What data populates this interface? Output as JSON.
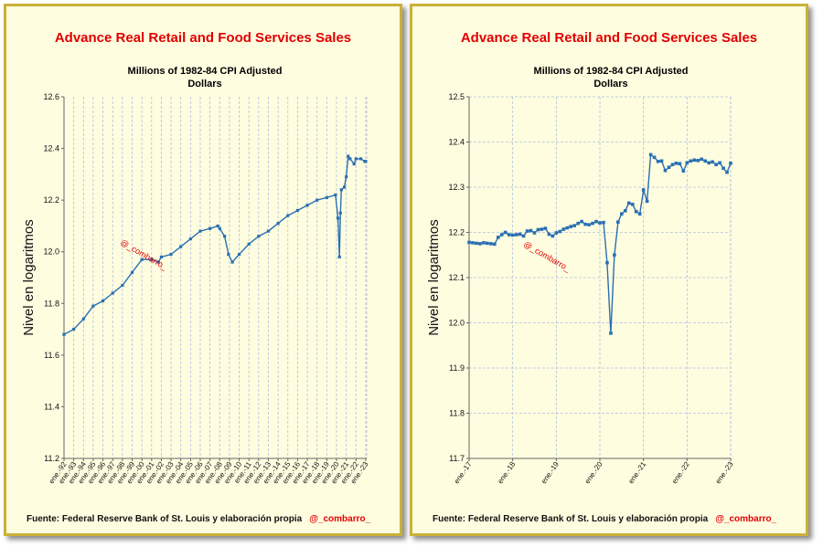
{
  "left_panel": {
    "title": "Advance Real Retail and Food Services Sales",
    "subtitle_line1": "Millions of 1982-84 CPI Adjusted",
    "subtitle_line2": "Dollars",
    "footer_source": "Fuente: Federal Reserve Bank of St. Louis y elaboración propia",
    "footer_handle": "@_combarro_",
    "watermark": "@_combarro_"
  },
  "right_panel": {
    "title": "Advance Real Retail and Food Services Sales",
    "subtitle_line1": "Millions of 1982-84 CPI Adjusted",
    "subtitle_line2": "Dollars",
    "footer_source": "Fuente: Federal Reserve Bank of St. Louis y elaboración propia",
    "footer_handle": "@_combarro_",
    "watermark": "@_combarro_"
  },
  "colors": {
    "series": "#2a6fb1",
    "title": "#e10000",
    "panel_bg": "#fffde0",
    "panel_border": "#c9b13a",
    "grid": "#aebfdd"
  },
  "chart_data": [
    {
      "type": "line",
      "title": "Advance Real Retail and Food Services Sales",
      "subtitle": "Millions of 1982-84 CPI Adjusted Dollars",
      "xlabel": "",
      "ylabel": "Nivel en logaritmos",
      "ylim": [
        11.2,
        12.6
      ],
      "yticks": [
        11.2,
        11.4,
        11.6,
        11.8,
        12.0,
        12.2,
        12.4,
        12.6
      ],
      "xlim": [
        1992.0,
        2023.1
      ],
      "grid": "vertical-dashed",
      "series": [
        {
          "x": [
            1992.0,
            1993.0,
            1994.0,
            1995.0,
            1996.0,
            1997.0,
            1998.0,
            1999.0,
            2000.0,
            2001.0,
            2001.7,
            2002.0,
            2003.0,
            2004.0,
            2005.0,
            2006.0,
            2007.0,
            2007.8,
            2008.0,
            2008.5,
            2008.9,
            2009.3,
            2010.0,
            2011.0,
            2012.0,
            2013.0,
            2014.0,
            2015.0,
            2016.0,
            2017.0,
            2018.0,
            2019.0,
            2019.9,
            2020.15,
            2020.3,
            2020.4,
            2020.5,
            2020.8,
            2021.0,
            2021.2,
            2021.4,
            2021.8,
            2022.0,
            2022.5,
            2022.9,
            2023.0
          ],
          "y": [
            11.68,
            11.7,
            11.74,
            11.79,
            11.81,
            11.84,
            11.87,
            11.92,
            11.97,
            11.97,
            11.96,
            11.98,
            11.99,
            12.02,
            12.05,
            12.08,
            12.09,
            12.1,
            12.09,
            12.06,
            11.99,
            11.96,
            11.99,
            12.03,
            12.06,
            12.08,
            12.11,
            12.14,
            12.16,
            12.18,
            12.2,
            12.21,
            12.22,
            12.13,
            11.98,
            12.15,
            12.24,
            12.25,
            12.29,
            12.37,
            12.36,
            12.34,
            12.36,
            12.36,
            12.35,
            12.35
          ]
        }
      ],
      "xtick_labels": [
        "ene.-92",
        "ene.-93",
        "ene.-94",
        "ene.-95",
        "ene.-96",
        "ene.-97",
        "ene.-98",
        "ene.-99",
        "ene.-00",
        "ene.-01",
        "ene.-02",
        "ene.-03",
        "ene.-04",
        "ene.-05",
        "ene.-06",
        "ene.-07",
        "ene.-08",
        "ene.-09",
        "ene.-10",
        "ene.-11",
        "ene.-12",
        "ene.-13",
        "ene.-14",
        "ene.-15",
        "ene.-16",
        "ene.-17",
        "ene.-18",
        "ene.-19",
        "ene.-20",
        "ene.-21",
        "ene.-22",
        "ene.-23"
      ]
    },
    {
      "type": "line",
      "title": "Advance Real Retail and Food Services Sales",
      "subtitle": "Millions of 1982-84 CPI Adjusted Dollars",
      "xlabel": "",
      "ylabel": "Nivel en logaritmos",
      "ylim": [
        11.7,
        12.5
      ],
      "yticks": [
        11.7,
        11.8,
        11.9,
        12.0,
        12.1,
        12.2,
        12.3,
        12.4,
        12.5
      ],
      "xlim": [
        2017.0,
        2023.0
      ],
      "grid": "both-dashed",
      "series": [
        {
          "x": [
            2017.0,
            2017.0833,
            2017.1667,
            2017.25,
            2017.3333,
            2017.4167,
            2017.5,
            2017.5833,
            2017.6667,
            2017.75,
            2017.8333,
            2017.9167,
            2018.0,
            2018.0833,
            2018.1667,
            2018.25,
            2018.3333,
            2018.4167,
            2018.5,
            2018.5833,
            2018.6667,
            2018.75,
            2018.8333,
            2018.9167,
            2019.0,
            2019.0833,
            2019.1667,
            2019.25,
            2019.3333,
            2019.4167,
            2019.5,
            2019.5833,
            2019.6667,
            2019.75,
            2019.8333,
            2019.9167,
            2020.0,
            2020.0833,
            2020.1667,
            2020.25,
            2020.3333,
            2020.4167,
            2020.5,
            2020.5833,
            2020.6667,
            2020.75,
            2020.8333,
            2020.9167,
            2021.0,
            2021.0833,
            2021.1667,
            2021.25,
            2021.3333,
            2021.4167,
            2021.5,
            2021.5833,
            2021.6667,
            2021.75,
            2021.8333,
            2021.9167,
            2022.0,
            2022.0833,
            2022.1667,
            2022.25,
            2022.3333,
            2022.4167,
            2022.5,
            2022.5833,
            2022.6667,
            2022.75,
            2022.8333,
            2022.9167,
            2023.0
          ],
          "y": [
            12.178,
            12.177,
            12.176,
            12.175,
            12.177,
            12.176,
            12.175,
            12.174,
            12.189,
            12.195,
            12.2,
            12.195,
            12.194,
            12.195,
            12.196,
            12.192,
            12.203,
            12.204,
            12.199,
            12.206,
            12.207,
            12.209,
            12.196,
            12.192,
            12.199,
            12.202,
            12.207,
            12.21,
            12.213,
            12.215,
            12.22,
            12.224,
            12.218,
            12.217,
            12.22,
            12.224,
            12.221,
            12.222,
            12.133,
            11.977,
            12.15,
            12.223,
            12.241,
            12.248,
            12.265,
            12.262,
            12.246,
            12.241,
            12.294,
            12.269,
            12.372,
            12.366,
            12.357,
            12.358,
            12.337,
            12.344,
            12.35,
            12.353,
            12.352,
            12.336,
            12.354,
            12.358,
            12.36,
            12.359,
            12.362,
            12.358,
            12.354,
            12.356,
            12.35,
            12.354,
            12.342,
            12.333,
            12.353
          ]
        }
      ],
      "xtick_labels": [
        "ene.-17",
        "ene.-18",
        "ene.-19",
        "ene.-20",
        "ene.-21",
        "ene.-22",
        "ene.-23"
      ]
    }
  ]
}
